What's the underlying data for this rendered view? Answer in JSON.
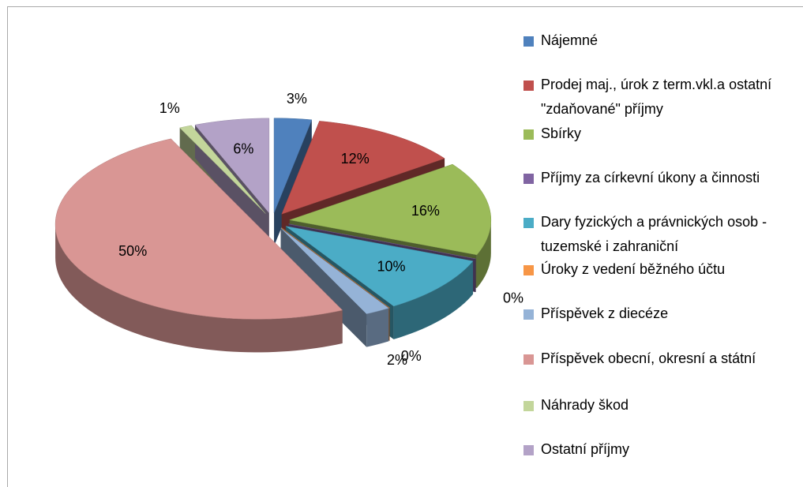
{
  "chart_data": {
    "type": "pie",
    "categories": [
      "Nájemné",
      "Prodej maj., úrok z term.vkl.a ostatní \"zdaňované\" příjmy",
      "Sbírky",
      "Příjmy za církevní úkony a činnosti",
      "Dary fyzických a právnických osob - tuzemské i zahraniční",
      "Úroky z vedení běžného účtu",
      "Příspěvek z diecéze",
      "Příspěvek obecní, okresní a státní",
      "Náhrady škod",
      "Ostatní příjmy"
    ],
    "values": [
      3,
      12,
      16,
      0,
      10,
      0,
      2,
      50,
      1,
      6
    ],
    "value_labels": [
      "3%",
      "12%",
      "16%",
      "0%",
      "10%",
      "0%",
      "2%",
      "50%",
      "1%",
      "6%"
    ],
    "colors": [
      "#4f81bd",
      "#c0504d",
      "#9bbb59",
      "#8064a2",
      "#4bacc6",
      "#f79646",
      "#95b3d7",
      "#d99694",
      "#c3d69b",
      "#b3a2c7"
    ],
    "legend": "right"
  }
}
